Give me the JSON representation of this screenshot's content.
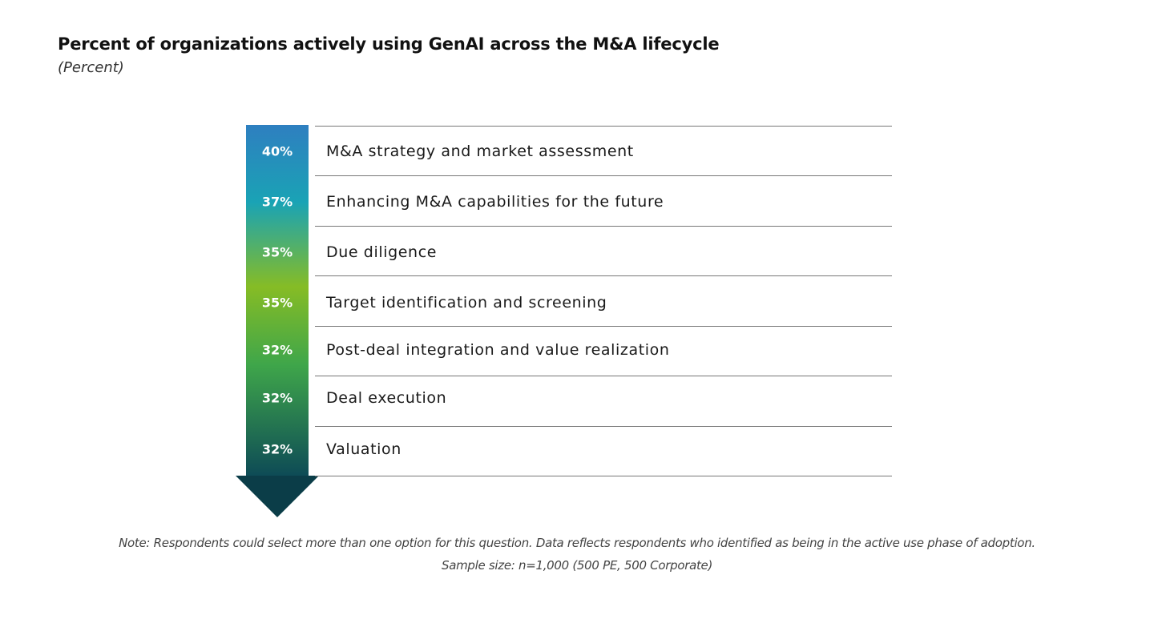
{
  "colors": {
    "arrow_top": "#2e7fc0",
    "arrow_teal": "#1aa3b5",
    "arrow_green": "#86bc25",
    "arrow_mid_green": "#3fa64a",
    "arrow_dark": "#0d4a56",
    "arrow_tip": "#0b3d48",
    "divider": "#777777"
  },
  "chart_data": {
    "type": "table",
    "title": "Percent of organizations actively using GenAI across the M&A lifecycle",
    "subtitle": "(Percent)",
    "categories": [
      "M&A strategy and market assessment",
      "Enhancing M&A capabilities for the future",
      "Due diligence",
      "Target identification and screening",
      "Post-deal integration and value realization",
      "Deal execution",
      "Valuation"
    ],
    "values": [
      40,
      37,
      35,
      35,
      32,
      32,
      32
    ],
    "value_labels": [
      "40%",
      "37%",
      "35%",
      "35%",
      "32%",
      "32%",
      "32%"
    ],
    "unit": "%"
  },
  "notes": {
    "line1": "Note: Respondents could select more than one option for this question. Data reflects respondents who identified as being in the active use phase of adoption.",
    "line2": "Sample size: n=1,000 (500 PE, 500 Corporate)"
  }
}
